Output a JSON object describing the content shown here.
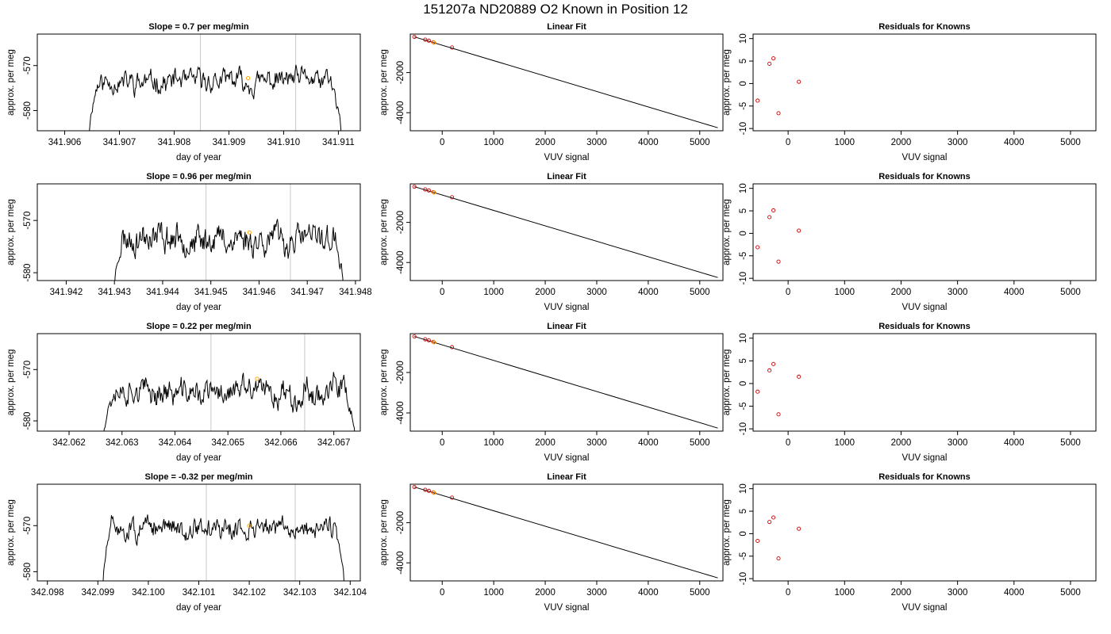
{
  "figure_title": "151207a     ND20889   O2 Known in Position  12",
  "chart_data": [
    {
      "type": "line",
      "row": 0,
      "col": 0,
      "title": "Slope =  0.7  per meg/min",
      "xlabel": "day of year",
      "ylabel": "approx. per meg",
      "xlim": [
        341.9055,
        341.9114
      ],
      "ylim": [
        -584.5,
        -563
      ],
      "xticks": [
        341.906,
        341.907,
        341.908,
        341.909,
        341.91,
        341.911
      ],
      "xtick_labels": [
        "341.906",
        "341.907",
        "341.908",
        "341.909",
        "341.910",
        "341.911"
      ],
      "yticks": [
        -580,
        -570
      ],
      "ytick_labels": [
        "-580",
        "-570"
      ],
      "signal": {
        "x_start": 341.90645,
        "x_end": 341.91105,
        "base": -573.5,
        "noise": 2.5,
        "drop_to": -585,
        "seed": 11
      },
      "vlines": [
        341.90848,
        341.91022
      ],
      "marker": {
        "x": 341.90935,
        "y": -572.8,
        "color": "#ffa500"
      }
    },
    {
      "type": "scatter",
      "row": 0,
      "col": 1,
      "title": "Linear Fit",
      "xlabel": "VUV signal",
      "ylabel": "approx. per meg",
      "xlim": [
        -620,
        5450
      ],
      "ylim": [
        -4900,
        -80
      ],
      "xticks": [
        0,
        1000,
        2000,
        3000,
        4000,
        5000
      ],
      "xtick_labels": [
        "0",
        "1000",
        "2000",
        "3000",
        "4000",
        "5000"
      ],
      "yticks": [
        -4000,
        -2000
      ],
      "ytick_labels": [
        "-4000",
        "-2000"
      ],
      "points": [
        [
          -540,
          -220
        ],
        [
          -330,
          -360
        ],
        [
          -260,
          -410
        ],
        [
          -170,
          -490
        ],
        [
          190,
          -750
        ]
      ],
      "point_color": "#cc0000",
      "highlight": {
        "x": -160,
        "y": -505,
        "color": "#ffa500"
      },
      "fit_line": [
        [
          -540,
          -220
        ],
        [
          5350,
          -4750
        ]
      ]
    },
    {
      "type": "scatter",
      "row": 0,
      "col": 2,
      "title": "Residuals for Knowns",
      "xlabel": "VUV signal",
      "ylabel": "approx. per meg",
      "xlim": [
        -620,
        5450
      ],
      "ylim": [
        -10.5,
        11
      ],
      "xticks": [
        0,
        1000,
        2000,
        3000,
        4000,
        5000
      ],
      "xtick_labels": [
        "0",
        "1000",
        "2000",
        "3000",
        "4000",
        "5000"
      ],
      "yticks": [
        -10,
        -5,
        0,
        5,
        10
      ],
      "ytick_labels": [
        "-10",
        "-5",
        "0",
        "5",
        "10"
      ],
      "points": [
        [
          -540,
          -3.8
        ],
        [
          -330,
          4.4
        ],
        [
          -260,
          5.6
        ],
        [
          -170,
          -6.6
        ],
        [
          190,
          0.4
        ]
      ],
      "point_color": "#cc0000"
    },
    {
      "type": "line",
      "row": 1,
      "col": 0,
      "title": "Slope =  0.96  per meg/min",
      "xlabel": "day of year",
      "ylabel": "approx. per meg",
      "xlim": [
        341.9414,
        341.9481
      ],
      "ylim": [
        -581.5,
        -563
      ],
      "xticks": [
        341.942,
        341.943,
        341.944,
        341.945,
        341.946,
        341.947,
        341.948
      ],
      "xtick_labels": [
        "341.942",
        "341.943",
        "341.944",
        "341.945",
        "341.946",
        "341.947",
        "341.948"
      ],
      "yticks": [
        -580,
        -570
      ],
      "ytick_labels": [
        "-580",
        "-570"
      ],
      "signal": {
        "x_start": 341.943,
        "x_end": 341.94775,
        "base": -573.5,
        "noise": 2.8,
        "drop_to": -583,
        "seed": 23
      },
      "vlines": [
        341.9449,
        341.94665
      ],
      "marker": {
        "x": 341.9458,
        "y": -572.3,
        "color": "#ffa500"
      }
    },
    {
      "type": "scatter",
      "row": 1,
      "col": 1,
      "title": "Linear Fit",
      "xlabel": "VUV signal",
      "ylabel": "approx. per meg",
      "xlim": [
        -620,
        5450
      ],
      "ylim": [
        -4900,
        -80
      ],
      "xticks": [
        0,
        1000,
        2000,
        3000,
        4000,
        5000
      ],
      "xtick_labels": [
        "0",
        "1000",
        "2000",
        "3000",
        "4000",
        "5000"
      ],
      "yticks": [
        -4000,
        -2000
      ],
      "ytick_labels": [
        "-4000",
        "-2000"
      ],
      "points": [
        [
          -540,
          -220
        ],
        [
          -330,
          -360
        ],
        [
          -260,
          -410
        ],
        [
          -170,
          -490
        ],
        [
          190,
          -750
        ]
      ],
      "point_color": "#cc0000",
      "highlight": {
        "x": -160,
        "y": -505,
        "color": "#ffa500"
      },
      "fit_line": [
        [
          -540,
          -220
        ],
        [
          5350,
          -4750
        ]
      ]
    },
    {
      "type": "scatter",
      "row": 1,
      "col": 2,
      "title": "Residuals for Knowns",
      "xlabel": "VUV signal",
      "ylabel": "approx. per meg",
      "xlim": [
        -620,
        5450
      ],
      "ylim": [
        -10.5,
        11
      ],
      "xticks": [
        0,
        1000,
        2000,
        3000,
        4000,
        5000
      ],
      "xtick_labels": [
        "0",
        "1000",
        "2000",
        "3000",
        "4000",
        "5000"
      ],
      "yticks": [
        -10,
        -5,
        0,
        5,
        10
      ],
      "ytick_labels": [
        "-10",
        "-5",
        "0",
        "5",
        "10"
      ],
      "points": [
        [
          -540,
          -3.1
        ],
        [
          -330,
          3.6
        ],
        [
          -260,
          5.1
        ],
        [
          -170,
          -6.3
        ],
        [
          190,
          0.6
        ]
      ],
      "point_color": "#cc0000"
    },
    {
      "type": "line",
      "row": 2,
      "col": 0,
      "title": "Slope =  0.22  per meg/min",
      "xlabel": "day of year",
      "ylabel": "approx. per meg",
      "xlim": [
        342.0614,
        342.0675
      ],
      "ylim": [
        -582,
        -563
      ],
      "xticks": [
        342.062,
        342.063,
        342.064,
        342.065,
        342.066,
        342.067
      ],
      "xtick_labels": [
        "342.062",
        "342.063",
        "342.064",
        "342.065",
        "342.066",
        "342.067"
      ],
      "yticks": [
        -580,
        -570
      ],
      "ytick_labels": [
        "-580",
        "-570"
      ],
      "signal": {
        "x_start": 342.06265,
        "x_end": 342.0674,
        "base": -574.5,
        "noise": 2.6,
        "drop_to": -583,
        "seed": 37
      },
      "vlines": [
        342.06468,
        342.06645
      ],
      "marker": {
        "x": 342.06555,
        "y": -571.8,
        "color": "#ffa500"
      }
    },
    {
      "type": "scatter",
      "row": 2,
      "col": 1,
      "title": "Linear Fit",
      "xlabel": "VUV signal",
      "ylabel": "approx. per meg",
      "xlim": [
        -620,
        5450
      ],
      "ylim": [
        -4900,
        -80
      ],
      "xticks": [
        0,
        1000,
        2000,
        3000,
        4000,
        5000
      ],
      "xtick_labels": [
        "0",
        "1000",
        "2000",
        "3000",
        "4000",
        "5000"
      ],
      "yticks": [
        -4000,
        -2000
      ],
      "ytick_labels": [
        "-4000",
        "-2000"
      ],
      "points": [
        [
          -540,
          -220
        ],
        [
          -330,
          -360
        ],
        [
          -260,
          -410
        ],
        [
          -170,
          -490
        ],
        [
          190,
          -750
        ]
      ],
      "point_color": "#cc0000",
      "highlight": {
        "x": -160,
        "y": -505,
        "color": "#ffa500"
      },
      "fit_line": [
        [
          -540,
          -220
        ],
        [
          5350,
          -4750
        ]
      ]
    },
    {
      "type": "scatter",
      "row": 2,
      "col": 2,
      "title": "Residuals for Knowns",
      "xlabel": "VUV signal",
      "ylabel": "approx. per meg",
      "xlim": [
        -620,
        5450
      ],
      "ylim": [
        -10.5,
        11
      ],
      "xticks": [
        0,
        1000,
        2000,
        3000,
        4000,
        5000
      ],
      "xtick_labels": [
        "0",
        "1000",
        "2000",
        "3000",
        "4000",
        "5000"
      ],
      "yticks": [
        -10,
        -5,
        0,
        5,
        10
      ],
      "ytick_labels": [
        "-10",
        "-5",
        "0",
        "5",
        "10"
      ],
      "points": [
        [
          -540,
          -1.8
        ],
        [
          -330,
          2.9
        ],
        [
          -260,
          4.3
        ],
        [
          -170,
          -6.8
        ],
        [
          190,
          1.5
        ]
      ],
      "point_color": "#cc0000"
    },
    {
      "type": "line",
      "row": 3,
      "col": 0,
      "title": "Slope =  -0.32  per meg/min",
      "xlabel": "day of year",
      "ylabel": "approx. per meg",
      "xlim": [
        342.0978,
        342.1042
      ],
      "ylim": [
        -582,
        -561
      ],
      "xticks": [
        342.098,
        342.099,
        342.1,
        342.101,
        342.102,
        342.103,
        342.104
      ],
      "xtick_labels": [
        "342.098",
        "342.099",
        "342.100",
        "342.101",
        "342.102",
        "342.103",
        "342.104"
      ],
      "yticks": [
        -580,
        -570
      ],
      "ytick_labels": [
        "-580",
        "-570"
      ],
      "signal": {
        "x_start": 342.0991,
        "x_end": 342.10388,
        "base": -570.5,
        "noise": 2.3,
        "drop_to": -583,
        "seed": 51
      },
      "vlines": [
        342.10115,
        342.10291
      ],
      "marker": {
        "x": 342.102,
        "y": -570.0,
        "color": "#ffa500"
      }
    },
    {
      "type": "scatter",
      "row": 3,
      "col": 1,
      "title": "Linear Fit",
      "xlabel": "VUV signal",
      "ylabel": "approx. per meg",
      "xlim": [
        -620,
        5450
      ],
      "ylim": [
        -4900,
        -80
      ],
      "xticks": [
        0,
        1000,
        2000,
        3000,
        4000,
        5000
      ],
      "xtick_labels": [
        "0",
        "1000",
        "2000",
        "3000",
        "4000",
        "5000"
      ],
      "yticks": [
        -4000,
        -2000
      ],
      "ytick_labels": [
        "-4000",
        "-2000"
      ],
      "points": [
        [
          -540,
          -220
        ],
        [
          -330,
          -360
        ],
        [
          -260,
          -410
        ],
        [
          -170,
          -490
        ],
        [
          190,
          -750
        ]
      ],
      "point_color": "#cc0000",
      "highlight": {
        "x": -160,
        "y": -505,
        "color": "#ffa500"
      },
      "fit_line": [
        [
          -540,
          -220
        ],
        [
          5350,
          -4750
        ]
      ]
    },
    {
      "type": "scatter",
      "row": 3,
      "col": 2,
      "title": "Residuals for Knowns",
      "xlabel": "VUV signal",
      "ylabel": "approx. per meg",
      "xlim": [
        -620,
        5450
      ],
      "ylim": [
        -10.5,
        11
      ],
      "xticks": [
        0,
        1000,
        2000,
        3000,
        4000,
        5000
      ],
      "xtick_labels": [
        "0",
        "1000",
        "2000",
        "3000",
        "4000",
        "5000"
      ],
      "yticks": [
        -10,
        -5,
        0,
        5,
        10
      ],
      "ytick_labels": [
        "-10",
        "-5",
        "0",
        "5",
        "10"
      ],
      "points": [
        [
          -540,
          -1.6
        ],
        [
          -330,
          2.6
        ],
        [
          -260,
          3.6
        ],
        [
          -170,
          -5.5
        ],
        [
          190,
          1.1
        ]
      ],
      "point_color": "#cc0000"
    }
  ]
}
